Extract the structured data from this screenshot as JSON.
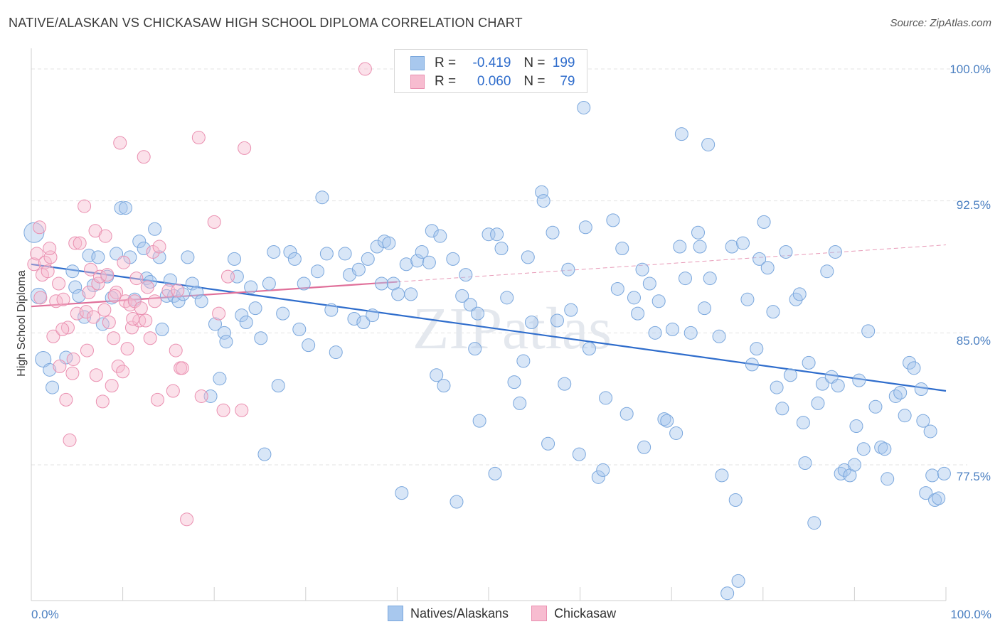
{
  "title": "NATIVE/ALASKAN VS CHICKASAW HIGH SCHOOL DIPLOMA CORRELATION CHART",
  "source": "Source: ZipAtlas.com",
  "watermark": "ZIPatlas",
  "legend": {
    "rows": [
      {
        "r_label": "R =",
        "r_value": "-0.419",
        "n_label": "N =",
        "n_value": "199",
        "color": "#a8c8ee",
        "edge": "#7aa7dd"
      },
      {
        "r_label": "R =",
        "r_value": "0.060",
        "n_label": "N =",
        "n_value": "79",
        "color": "#f7bcd0",
        "edge": "#ea8fb0"
      }
    ]
  },
  "bottom_legend": [
    {
      "label": "Natives/Alaskans",
      "color": "#a8c8ee",
      "edge": "#7aa7dd"
    },
    {
      "label": "Chickasaw",
      "color": "#f7bcd0",
      "edge": "#ea8fb0"
    }
  ],
  "chart_data": {
    "type": "scatter",
    "title": "NATIVE/ALASKAN VS CHICKASAW HIGH SCHOOL DIPLOMA CORRELATION CHART",
    "xlabel": "",
    "ylabel": "High School Diploma",
    "xlim": [
      0,
      100
    ],
    "ylim": [
      70.0,
      101.0
    ],
    "x_tick_labels": [
      "0.0%",
      "100.0%"
    ],
    "y_ticks": [
      77.5,
      85.0,
      92.5,
      100.0
    ],
    "y_tick_labels": [
      "77.5%",
      "85.0%",
      "92.5%",
      "100.0%"
    ],
    "series": [
      {
        "name": "Natives/Alaskans",
        "color": "#7aa7dd",
        "trend": {
          "x0": 0,
          "y0": 88.9,
          "x1": 100,
          "y1": 81.7
        },
        "points": [
          [
            0.3,
            90.7
          ],
          [
            0.8,
            87.1
          ],
          [
            1.3,
            83.5
          ],
          [
            2.0,
            82.9
          ],
          [
            2.3,
            81.9
          ],
          [
            3.8,
            83.6
          ],
          [
            4.5,
            88.5
          ],
          [
            4.8,
            87.6
          ],
          [
            5.2,
            87.1
          ],
          [
            5.8,
            85.9
          ],
          [
            6.3,
            89.4
          ],
          [
            6.8,
            87.7
          ],
          [
            7.3,
            89.3
          ],
          [
            7.8,
            85.5
          ],
          [
            8.3,
            88.2
          ],
          [
            8.8,
            87.0
          ],
          [
            9.3,
            89.5
          ],
          [
            9.8,
            92.1
          ],
          [
            10.3,
            92.1
          ],
          [
            10.8,
            89.3
          ],
          [
            11.3,
            86.9
          ],
          [
            11.8,
            90.2
          ],
          [
            12.3,
            89.8
          ],
          [
            12.6,
            88.1
          ],
          [
            13.0,
            87.9
          ],
          [
            13.5,
            90.9
          ],
          [
            14.0,
            89.3
          ],
          [
            14.3,
            85.2
          ],
          [
            14.8,
            87.1
          ],
          [
            15.2,
            88.0
          ],
          [
            15.6,
            87.1
          ],
          [
            16.1,
            86.8
          ],
          [
            16.6,
            87.2
          ],
          [
            17.1,
            89.3
          ],
          [
            17.6,
            87.8
          ],
          [
            18.1,
            87.3
          ],
          [
            18.6,
            86.8
          ],
          [
            19.6,
            81.4
          ],
          [
            20.1,
            85.5
          ],
          [
            20.6,
            82.4
          ],
          [
            21.1,
            85.0
          ],
          [
            21.3,
            84.5
          ],
          [
            22.2,
            89.2
          ],
          [
            22.5,
            88.2
          ],
          [
            23.0,
            86.0
          ],
          [
            23.5,
            85.6
          ],
          [
            24.0,
            87.6
          ],
          [
            24.5,
            86.4
          ],
          [
            25.1,
            84.7
          ],
          [
            25.5,
            78.1
          ],
          [
            26.0,
            87.8
          ],
          [
            26.5,
            89.6
          ],
          [
            27.0,
            82.0
          ],
          [
            27.5,
            86.1
          ],
          [
            28.3,
            89.6
          ],
          [
            28.8,
            89.2
          ],
          [
            29.3,
            85.2
          ],
          [
            29.8,
            87.8
          ],
          [
            30.3,
            84.3
          ],
          [
            31.3,
            88.5
          ],
          [
            31.8,
            92.7
          ],
          [
            32.3,
            89.5
          ],
          [
            32.8,
            86.3
          ],
          [
            33.3,
            83.9
          ],
          [
            34.3,
            89.5
          ],
          [
            34.8,
            88.3
          ],
          [
            35.3,
            85.8
          ],
          [
            35.8,
            88.6
          ],
          [
            36.3,
            85.6
          ],
          [
            36.8,
            89.2
          ],
          [
            37.3,
            86.0
          ],
          [
            37.8,
            89.9
          ],
          [
            38.3,
            87.8
          ],
          [
            38.6,
            90.2
          ],
          [
            39.1,
            90.1
          ],
          [
            39.6,
            87.8
          ],
          [
            40.1,
            87.2
          ],
          [
            40.5,
            75.9
          ],
          [
            41.0,
            88.9
          ],
          [
            41.5,
            87.2
          ],
          [
            42.2,
            89.1
          ],
          [
            42.7,
            89.6
          ],
          [
            43.5,
            89.0
          ],
          [
            43.8,
            90.8
          ],
          [
            44.3,
            82.6
          ],
          [
            44.7,
            90.5
          ],
          [
            45.1,
            82.0
          ],
          [
            46.1,
            89.2
          ],
          [
            46.5,
            75.4
          ],
          [
            47.1,
            87.1
          ],
          [
            47.5,
            88.3
          ],
          [
            48.0,
            86.6
          ],
          [
            48.5,
            84.1
          ],
          [
            48.8,
            86.1
          ],
          [
            49.0,
            80.0
          ],
          [
            50.0,
            90.6
          ],
          [
            50.7,
            77.0
          ],
          [
            50.9,
            90.6
          ],
          [
            51.4,
            89.8
          ],
          [
            52.0,
            87.0
          ],
          [
            52.8,
            82.2
          ],
          [
            53.4,
            81.0
          ],
          [
            53.8,
            83.4
          ],
          [
            54.3,
            89.3
          ],
          [
            54.7,
            85.6
          ],
          [
            55.8,
            93.0
          ],
          [
            56.0,
            92.5
          ],
          [
            56.5,
            78.7
          ],
          [
            57.0,
            90.7
          ],
          [
            57.5,
            85.7
          ],
          [
            58.3,
            82.1
          ],
          [
            58.7,
            88.6
          ],
          [
            59.0,
            86.3
          ],
          [
            59.9,
            78.1
          ],
          [
            60.4,
            97.8
          ],
          [
            60.6,
            91.0
          ],
          [
            61.0,
            84.1
          ],
          [
            62.0,
            76.8
          ],
          [
            62.5,
            77.2
          ],
          [
            62.8,
            81.3
          ],
          [
            63.6,
            91.4
          ],
          [
            64.1,
            87.5
          ],
          [
            64.6,
            89.8
          ],
          [
            65.1,
            80.4
          ],
          [
            65.9,
            87.0
          ],
          [
            66.3,
            86.1
          ],
          [
            66.8,
            88.6
          ],
          [
            67.0,
            78.5
          ],
          [
            67.6,
            87.8
          ],
          [
            68.2,
            85.0
          ],
          [
            68.6,
            86.8
          ],
          [
            69.2,
            80.1
          ],
          [
            69.5,
            80.0
          ],
          [
            70.1,
            85.2
          ],
          [
            70.5,
            79.3
          ],
          [
            70.9,
            89.9
          ],
          [
            71.1,
            96.3
          ],
          [
            71.5,
            88.1
          ],
          [
            72.1,
            85.0
          ],
          [
            72.9,
            90.7
          ],
          [
            73.1,
            89.9
          ],
          [
            73.6,
            86.4
          ],
          [
            74.0,
            95.7
          ],
          [
            74.2,
            88.1
          ],
          [
            75.2,
            84.8
          ],
          [
            75.5,
            76.9
          ],
          [
            76.1,
            70.2
          ],
          [
            76.6,
            89.9
          ],
          [
            77.0,
            75.5
          ],
          [
            77.3,
            70.9
          ],
          [
            77.8,
            90.1
          ],
          [
            78.3,
            86.9
          ],
          [
            78.8,
            83.2
          ],
          [
            79.3,
            84.1
          ],
          [
            79.6,
            89.2
          ],
          [
            80.1,
            91.3
          ],
          [
            80.5,
            88.7
          ],
          [
            81.1,
            86.2
          ],
          [
            81.5,
            81.9
          ],
          [
            82.1,
            80.7
          ],
          [
            82.5,
            89.6
          ],
          [
            83.0,
            82.6
          ],
          [
            83.6,
            86.9
          ],
          [
            84.0,
            87.2
          ],
          [
            84.4,
            79.9
          ],
          [
            84.6,
            77.6
          ],
          [
            85.0,
            83.3
          ],
          [
            85.6,
            74.2
          ],
          [
            86.0,
            81.0
          ],
          [
            86.5,
            82.1
          ],
          [
            87.0,
            88.5
          ],
          [
            87.5,
            82.5
          ],
          [
            87.9,
            89.6
          ],
          [
            88.2,
            82.0
          ],
          [
            88.5,
            77.0
          ],
          [
            88.9,
            77.2
          ],
          [
            89.5,
            76.9
          ],
          [
            90.0,
            77.5
          ],
          [
            90.2,
            79.7
          ],
          [
            90.5,
            82.3
          ],
          [
            91.0,
            78.4
          ],
          [
            91.5,
            85.1
          ],
          [
            92.3,
            80.8
          ],
          [
            92.9,
            78.5
          ],
          [
            93.3,
            78.4
          ],
          [
            93.6,
            76.7
          ],
          [
            94.5,
            81.4
          ],
          [
            95.0,
            81.6
          ],
          [
            95.5,
            80.3
          ],
          [
            96.0,
            83.3
          ],
          [
            96.5,
            83.0
          ],
          [
            97.3,
            81.8
          ],
          [
            97.5,
            80.0
          ],
          [
            97.8,
            75.9
          ],
          [
            98.3,
            79.4
          ],
          [
            98.5,
            76.9
          ],
          [
            98.8,
            75.5
          ],
          [
            99.2,
            75.6
          ],
          [
            99.8,
            77.0
          ]
        ]
      },
      {
        "name": "Chickasaw",
        "color": "#ea8fb0",
        "trend": {
          "x0": 0,
          "y0": 86.5,
          "x1": 40,
          "y1": 87.9
        },
        "trend_extension": {
          "x0": 40,
          "y0": 87.9,
          "x1": 100,
          "y1": 90.0
        },
        "points": [
          [
            0.3,
            88.9
          ],
          [
            0.6,
            89.5
          ],
          [
            0.9,
            91.0
          ],
          [
            1.2,
            88.3
          ],
          [
            1.5,
            89.0
          ],
          [
            1.8,
            88.5
          ],
          [
            2.1,
            89.3
          ],
          [
            2.4,
            84.8
          ],
          [
            2.7,
            86.8
          ],
          [
            3.0,
            87.8
          ],
          [
            3.1,
            83.1
          ],
          [
            3.5,
            86.9
          ],
          [
            3.8,
            81.2
          ],
          [
            4.0,
            85.3
          ],
          [
            4.2,
            78.9
          ],
          [
            4.5,
            82.7
          ],
          [
            4.8,
            90.1
          ],
          [
            5.0,
            86.1
          ],
          [
            5.3,
            90.1
          ],
          [
            5.8,
            92.2
          ],
          [
            6.0,
            86.2
          ],
          [
            6.3,
            87.3
          ],
          [
            6.5,
            88.6
          ],
          [
            6.8,
            85.9
          ],
          [
            7.0,
            90.8
          ],
          [
            7.3,
            87.8
          ],
          [
            7.5,
            88.2
          ],
          [
            7.8,
            81.1
          ],
          [
            8.0,
            86.3
          ],
          [
            8.3,
            88.3
          ],
          [
            8.5,
            85.6
          ],
          [
            8.8,
            82.0
          ],
          [
            9.0,
            84.7
          ],
          [
            9.3,
            87.3
          ],
          [
            9.5,
            83.1
          ],
          [
            9.7,
            95.8
          ],
          [
            10.0,
            82.8
          ],
          [
            10.3,
            86.8
          ],
          [
            10.5,
            84.1
          ],
          [
            10.8,
            86.6
          ],
          [
            11.0,
            85.3
          ],
          [
            11.3,
            86.8
          ],
          [
            11.5,
            88.1
          ],
          [
            11.8,
            85.7
          ],
          [
            12.0,
            86.4
          ],
          [
            12.3,
            95.0
          ],
          [
            12.5,
            85.7
          ],
          [
            12.7,
            87.6
          ],
          [
            13.0,
            84.7
          ],
          [
            13.3,
            89.6
          ],
          [
            13.5,
            86.8
          ],
          [
            13.8,
            81.2
          ],
          [
            14.0,
            89.9
          ],
          [
            15.0,
            87.4
          ],
          [
            15.5,
            81.7
          ],
          [
            15.8,
            84.0
          ],
          [
            16.0,
            87.4
          ],
          [
            16.3,
            83.0
          ],
          [
            16.5,
            83.0
          ],
          [
            17.0,
            74.4
          ],
          [
            18.3,
            96.1
          ],
          [
            18.6,
            81.4
          ],
          [
            20.0,
            91.3
          ],
          [
            20.5,
            86.1
          ],
          [
            21.0,
            80.6
          ],
          [
            21.5,
            88.2
          ],
          [
            23.0,
            80.6
          ],
          [
            23.3,
            95.5
          ],
          [
            36.5,
            100.0
          ],
          [
            1.0,
            87.0
          ],
          [
            2.0,
            89.8
          ],
          [
            3.4,
            85.2
          ],
          [
            4.6,
            83.5
          ],
          [
            6.1,
            84.0
          ],
          [
            7.1,
            82.6
          ],
          [
            8.1,
            90.5
          ],
          [
            9.1,
            87.1
          ],
          [
            10.1,
            89.0
          ],
          [
            11.1,
            85.8
          ]
        ]
      }
    ]
  }
}
